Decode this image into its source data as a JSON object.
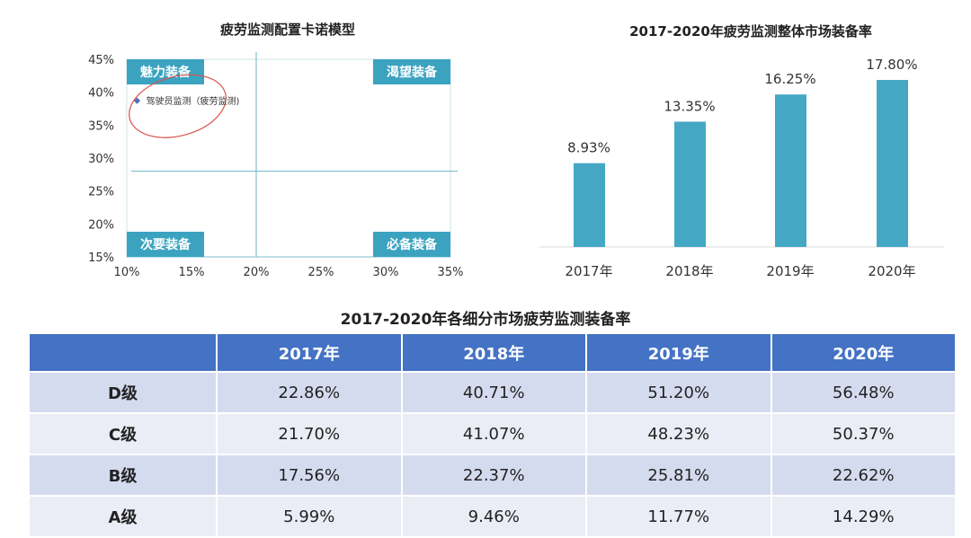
{
  "chart_data": [
    {
      "type": "scatter",
      "title": "疲劳监测配置卡诺模型",
      "xlim": [
        10,
        35
      ],
      "ylim": [
        15,
        45
      ],
      "x_ticks": [
        "10%",
        "15%",
        "20%",
        "25%",
        "30%",
        "35%"
      ],
      "y_ticks": [
        "15%",
        "20%",
        "25%",
        "30%",
        "35%",
        "40%",
        "45%"
      ],
      "points": [
        {
          "label": "驾驶员监测（疲劳监测)",
          "x": 10.8,
          "y": 38.7
        }
      ],
      "quadrant_lines": {
        "x": 20,
        "y": 28
      },
      "quadrants": {
        "top_left": "魅力装备",
        "top_right": "渴望装备",
        "bottom_left": "次要装备",
        "bottom_right": "必备装备"
      },
      "colors": {
        "accent": "#3ba3bf",
        "point": "#4472c4",
        "circle": "#d9534f"
      }
    },
    {
      "type": "bar",
      "title": "2017-2020年疲劳监测整体市场装备率",
      "categories": [
        "2017年",
        "2018年",
        "2019年",
        "2020年"
      ],
      "values": [
        8.93,
        13.35,
        16.25,
        17.8
      ],
      "data_labels": [
        "8.93%",
        "13.35%",
        "16.25%",
        "17.80%"
      ],
      "colors": {
        "bar": "#44a8c4"
      }
    },
    {
      "type": "table",
      "title": "2017-2020年各细分市场疲劳监测装备率",
      "columns": [
        "",
        "2017年",
        "2018年",
        "2019年",
        "2020年"
      ],
      "rows": [
        {
          "label": "D级",
          "values": [
            "22.86%",
            "40.71%",
            "51.20%",
            "56.48%"
          ]
        },
        {
          "label": "C级",
          "values": [
            "21.70%",
            "41.07%",
            "48.23%",
            "50.37%"
          ]
        },
        {
          "label": "B级",
          "values": [
            "17.56%",
            "22.37%",
            "25.81%",
            "22.62%"
          ]
        },
        {
          "label": "A级",
          "values": [
            "5.99%",
            "9.46%",
            "11.77%",
            "14.29%"
          ]
        }
      ]
    }
  ]
}
